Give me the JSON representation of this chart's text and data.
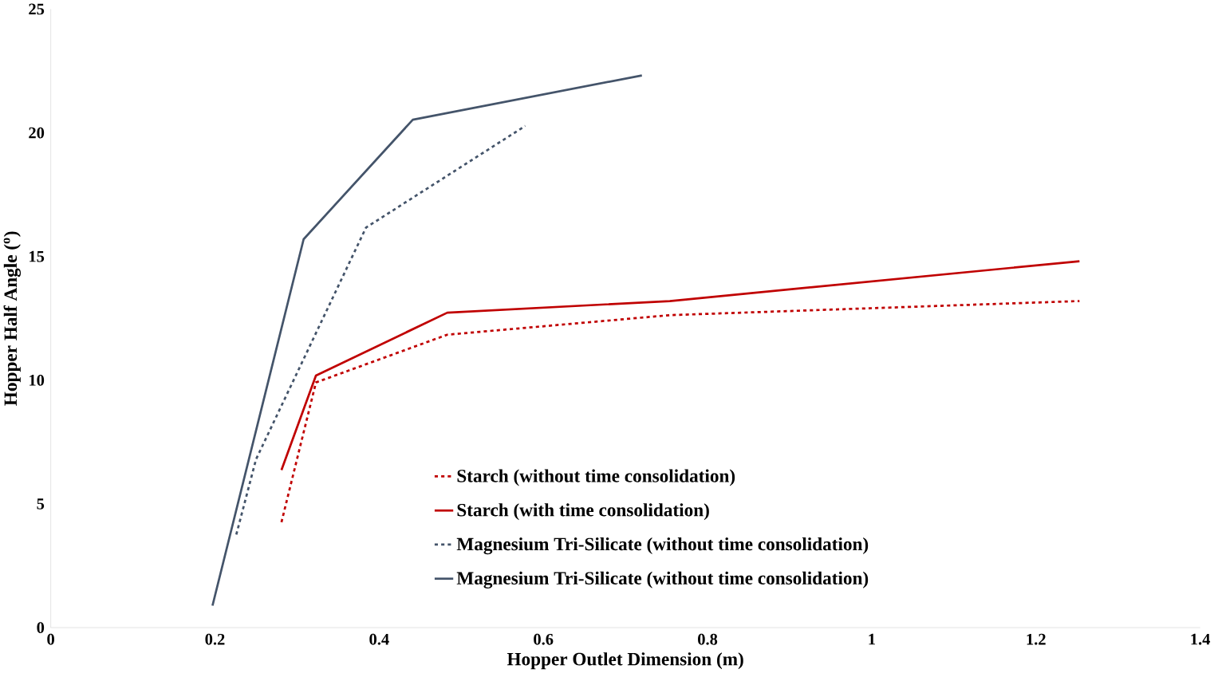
{
  "chart_data": {
    "type": "line",
    "xlabel": "Hopper Outlet Dimension (m)",
    "ylabel": "Hopper Half Angle ($^{o}$)",
    "xlim": [
      0,
      1.4
    ],
    "ylim": [
      0,
      25
    ],
    "xticks": [
      0,
      0.2,
      0.4,
      0.6,
      0.8,
      1,
      1.2,
      1.4
    ],
    "yticks": [
      0,
      5,
      10,
      15,
      20,
      25
    ],
    "grid": false,
    "legend": "bottom right",
    "marker": "none",
    "series": [
      {
        "name": "Starch (without time consolidation)",
        "color": "#c00000",
        "line_style": "dashed",
        "x": [
          0.281,
          0.323,
          0.483,
          0.754,
          1.253
        ],
        "values": [
          4.26,
          9.91,
          11.84,
          12.63,
          13.2
        ]
      },
      {
        "name": "Starch (with time consolidation)",
        "color": "#c00000",
        "line_style": "solid",
        "x": [
          0.281,
          0.323,
          0.483,
          0.754,
          1.253
        ],
        "values": [
          6.37,
          10.19,
          12.73,
          13.2,
          14.81
        ]
      },
      {
        "name": "Magnesium Tri-Silicate (without time consolidation)",
        "color": "#44546a",
        "line_style": "dashed",
        "x": [
          0.226,
          0.25,
          0.384,
          0.578
        ],
        "values": [
          3.76,
          6.8,
          16.17,
          20.28
        ]
      },
      {
        "name": "Magnesium Tri-Silicate (without time consolidation)",
        "color": "#44546a",
        "line_style": "solid",
        "x": [
          0.197,
          0.308,
          0.441,
          0.72
        ],
        "values": [
          0.89,
          15.7,
          20.53,
          22.32
        ]
      }
    ]
  }
}
